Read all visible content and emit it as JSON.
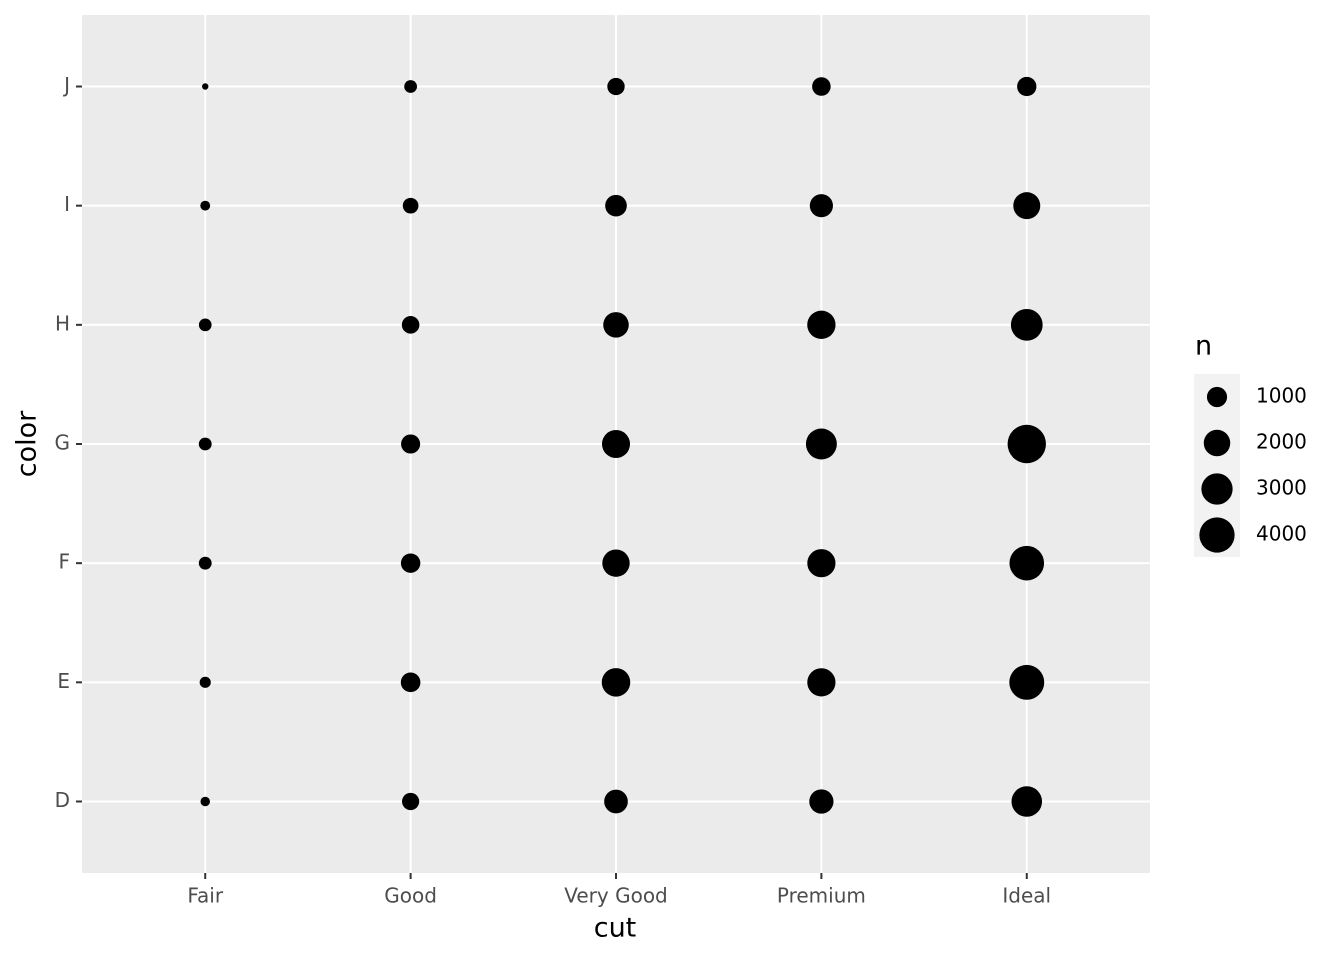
{
  "chart_data": {
    "type": "scatter",
    "x_label": "cut",
    "y_label": "color",
    "x_categories": [
      "Fair",
      "Good",
      "Very Good",
      "Premium",
      "Ideal"
    ],
    "y_categories": [
      "D",
      "E",
      "F",
      "G",
      "H",
      "I",
      "J"
    ],
    "size_label": "n",
    "values": [
      [
        163,
        224,
        312,
        314,
        303,
        175,
        119
      ],
      [
        662,
        933,
        909,
        871,
        702,
        522,
        307
      ],
      [
        1513,
        2400,
        2164,
        2299,
        1824,
        1204,
        678
      ],
      [
        1603,
        2337,
        2331,
        2924,
        2360,
        1428,
        808
      ],
      [
        2834,
        3903,
        3826,
        4884,
        3115,
        2093,
        896
      ]
    ],
    "color": "#000000",
    "size_breaks": [
      1000,
      2000,
      3000,
      4000
    ],
    "grid": true
  }
}
